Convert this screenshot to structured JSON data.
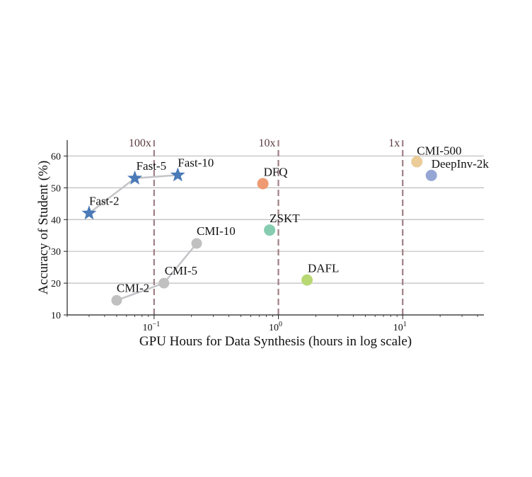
{
  "chart_data": {
    "type": "scatter",
    "title": "",
    "xlabel": "GPU Hours for Data Synthesis (hours in log scale)",
    "ylabel": "Accuracy of Student (%)",
    "xscale": "log",
    "xlim": [
      0.02,
      45
    ],
    "ylim": [
      10,
      65
    ],
    "grid": "horizontal",
    "x_ticks": [
      {
        "value": 0.1,
        "base": "10",
        "exp": "−1"
      },
      {
        "value": 1,
        "base": "10",
        "exp": "0"
      },
      {
        "value": 10,
        "base": "10",
        "exp": "1"
      }
    ],
    "y_ticks": [
      10,
      20,
      30,
      40,
      50,
      60
    ],
    "reference_lines": [
      {
        "x": 0.1,
        "label": "100x"
      },
      {
        "x": 1,
        "label": "10x"
      },
      {
        "x": 10,
        "label": "1x"
      }
    ],
    "series": [
      {
        "name": "Fast",
        "marker": "star",
        "color": "#4a7ab8",
        "line_color": "#c4c4c8",
        "points": [
          {
            "label": "Fast-2",
            "x": 0.03,
            "y": 42
          },
          {
            "label": "Fast-5",
            "x": 0.07,
            "y": 53
          },
          {
            "label": "Fast-10",
            "x": 0.155,
            "y": 54
          }
        ]
      },
      {
        "name": "CMI",
        "marker": "circle",
        "color": "#c0c0c0",
        "line_color": "#c4c4c8",
        "points": [
          {
            "label": "CMI-2",
            "x": 0.05,
            "y": 14.6
          },
          {
            "label": "CMI-5",
            "x": 0.12,
            "y": 20
          },
          {
            "label": "CMI-10",
            "x": 0.22,
            "y": 32.5
          }
        ]
      }
    ],
    "points": [
      {
        "label": "DFQ",
        "x": 0.75,
        "y": 51.3,
        "color": "#ee9a73"
      },
      {
        "label": "ZSKT",
        "x": 0.85,
        "y": 36.7,
        "color": "#86ccb0"
      },
      {
        "label": "DAFL",
        "x": 1.7,
        "y": 21,
        "color": "#b8d874"
      },
      {
        "label": "CMI-500",
        "x": 13,
        "y": 58.2,
        "color": "#eacd98"
      },
      {
        "label": "DeepInv-2k",
        "x": 17,
        "y": 53.9,
        "color": "#95a6d4"
      }
    ]
  }
}
